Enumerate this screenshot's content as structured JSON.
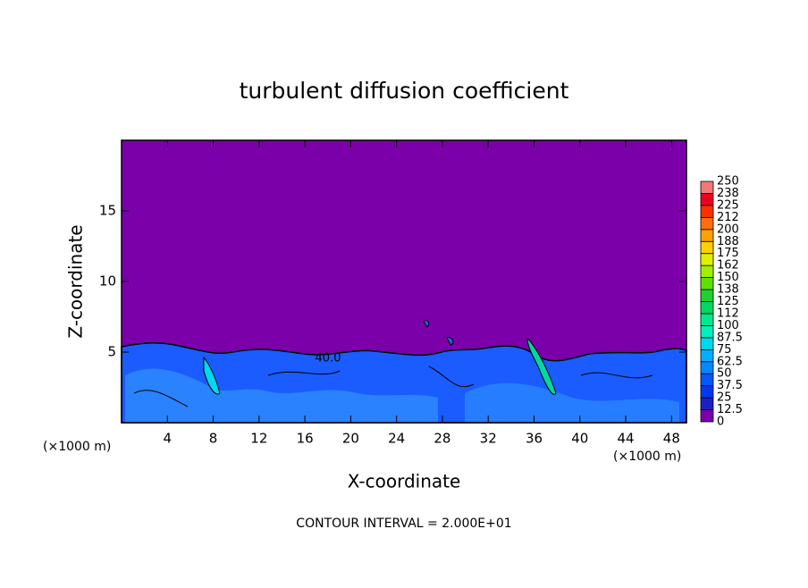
{
  "chart_data": {
    "type": "contour",
    "title": "turbulent diffusion coefficient",
    "xlabel": "X-coordinate",
    "ylabel": "Z-coordinate",
    "axis_unit": "(×1000 m)",
    "xlim": [
      0,
      49.3
    ],
    "xticks": [
      4,
      8,
      12,
      16,
      20,
      24,
      28,
      32,
      36,
      40,
      44,
      48
    ],
    "ylim": [
      0,
      20
    ],
    "yticks": [
      5,
      10,
      15
    ],
    "contour_label": "40.0",
    "footnote": "CONTOUR INTERVAL = 2.000E+01",
    "colorbar": {
      "levels": [
        0,
        12.5,
        25,
        37.5,
        50,
        62.5,
        75,
        87.5,
        100,
        112,
        125,
        138,
        150,
        162,
        175,
        188,
        200,
        212,
        225,
        238,
        250
      ],
      "colors": [
        "#7b00a9",
        "#1e1ec8",
        "#0038f0",
        "#0058ff",
        "#0088ff",
        "#00b0ff",
        "#00d8f0",
        "#00f0c0",
        "#00e890",
        "#00d860",
        "#20d030",
        "#60e000",
        "#a0f000",
        "#e0f000",
        "#ffd000",
        "#ffa000",
        "#ff7000",
        "#ff3000",
        "#f00020",
        "#f07878"
      ]
    }
  }
}
